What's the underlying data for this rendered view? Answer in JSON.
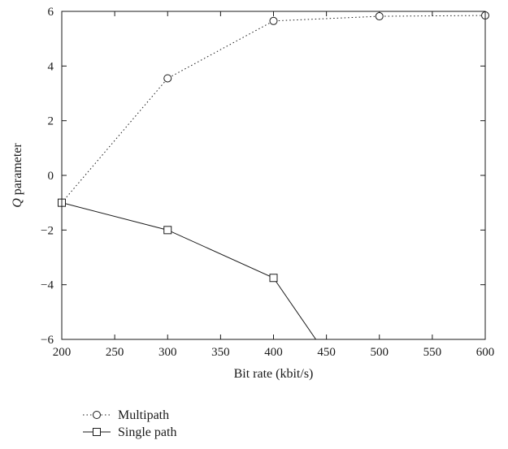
{
  "chart_data": {
    "type": "line",
    "xlabel": "Bit rate (kbit/s)",
    "ylabel_italic": "Q",
    "ylabel_rest": " parameter",
    "xlim": [
      200,
      600
    ],
    "ylim": [
      -6,
      6
    ],
    "xticks": [
      200,
      250,
      300,
      350,
      400,
      450,
      500,
      550,
      600
    ],
    "yticks": [
      -6,
      -4,
      -2,
      0,
      2,
      4,
      6
    ],
    "xtick_labels": [
      "200",
      "250",
      "300",
      "350",
      "400",
      "450",
      "500",
      "550",
      "600"
    ],
    "ytick_labels": [
      "−6",
      "−4",
      "−2",
      "0",
      "2",
      "4",
      "6"
    ],
    "grid": false,
    "legend_placement": "below plot, left",
    "series": [
      {
        "name": "Multipath",
        "line_style": "dotted",
        "marker": "circle",
        "color": "#1a1a1a",
        "x": [
          200,
          300,
          400,
          500,
          600
        ],
        "y": [
          -1.0,
          3.55,
          5.65,
          5.82,
          5.85
        ]
      },
      {
        "name": "Single path",
        "line_style": "solid",
        "marker": "square",
        "color": "#1a1a1a",
        "x": [
          200,
          300,
          400,
          440
        ],
        "y": [
          -1.0,
          -2.0,
          -3.75,
          -6.0
        ]
      }
    ]
  }
}
